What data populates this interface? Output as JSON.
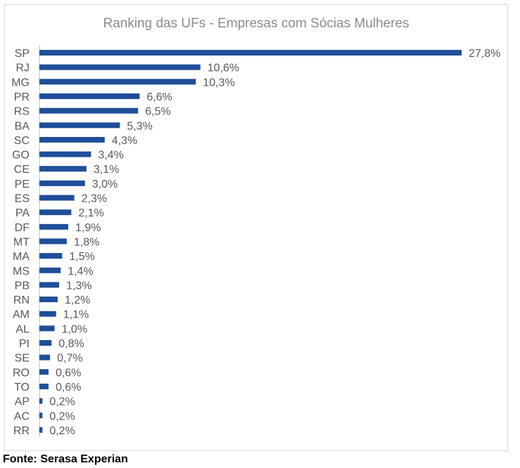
{
  "chart_data": {
    "type": "bar",
    "orientation": "horizontal",
    "title": "Ranking das UFs - Empresas com Sócias Mulheres",
    "xlabel": "",
    "ylabel": "",
    "categories": [
      "SP",
      "RJ",
      "MG",
      "PR",
      "RS",
      "BA",
      "SC",
      "GO",
      "CE",
      "PE",
      "ES",
      "PA",
      "DF",
      "MT",
      "MA",
      "MS",
      "PB",
      "RN",
      "AM",
      "AL",
      "PI",
      "SE",
      "RO",
      "TO",
      "AP",
      "AC",
      "RR"
    ],
    "values": [
      27.8,
      10.6,
      10.3,
      6.6,
      6.5,
      5.3,
      4.3,
      3.4,
      3.1,
      3.0,
      2.3,
      2.1,
      1.9,
      1.8,
      1.5,
      1.4,
      1.3,
      1.2,
      1.1,
      1.0,
      0.8,
      0.7,
      0.6,
      0.6,
      0.2,
      0.2,
      0.2
    ],
    "data_labels": [
      "27,8%",
      "10,6%",
      "10,3%",
      "6,6%",
      "6,5%",
      "5,3%",
      "4,3%",
      "3,4%",
      "3,1%",
      "3,0%",
      "2,3%",
      "2,1%",
      "1,9%",
      "1,8%",
      "1,5%",
      "1,4%",
      "1,3%",
      "1,2%",
      "1,1%",
      "1,0%",
      "0,8%",
      "0,7%",
      "0,6%",
      "0,6%",
      "0,2%",
      "0,2%",
      "0,2%"
    ],
    "grid": false,
    "legend": "none",
    "colors": {
      "bar": "#1f4e9a",
      "axis": "#bfbfbf",
      "label_text": "#595959",
      "title_text": "#8c8c8c"
    }
  },
  "source_note": "Fonte: Serasa Experian"
}
